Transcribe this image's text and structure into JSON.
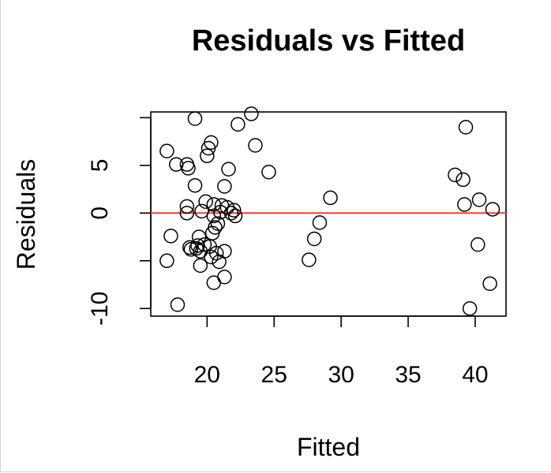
{
  "chart_data": {
    "type": "scatter",
    "title": "Residuals vs Fitted",
    "xlabel": "Fitted",
    "ylabel": "Residuals",
    "xlim": [
      15.8,
      42.3
    ],
    "ylim": [
      -10.8,
      10.6
    ],
    "x_ticks": [
      20,
      25,
      30,
      35,
      40
    ],
    "x_tick_labels": [
      "20",
      "25",
      "30",
      "35",
      "40"
    ],
    "y_ticks": [
      -10,
      -5,
      0,
      5,
      10
    ],
    "y_tick_labels": [
      "-10",
      "",
      "0",
      "5",
      ""
    ],
    "grid": false,
    "reference_line": {
      "y": 0,
      "color": "#ff3b30"
    },
    "point_color": "#000000",
    "points": [
      {
        "x": 17.0,
        "y": 6.5
      },
      {
        "x": 17.0,
        "y": -5.0
      },
      {
        "x": 17.3,
        "y": -2.4
      },
      {
        "x": 17.7,
        "y": 5.1
      },
      {
        "x": 17.8,
        "y": -9.6
      },
      {
        "x": 18.5,
        "y": 5.1
      },
      {
        "x": 18.5,
        "y": 0.7
      },
      {
        "x": 18.5,
        "y": 0.0
      },
      {
        "x": 18.6,
        "y": 4.7
      },
      {
        "x": 18.7,
        "y": -3.6
      },
      {
        "x": 18.8,
        "y": -3.8
      },
      {
        "x": 19.1,
        "y": 9.9
      },
      {
        "x": 19.1,
        "y": 2.9
      },
      {
        "x": 19.2,
        "y": -3.7
      },
      {
        "x": 19.3,
        "y": -3.4
      },
      {
        "x": 19.4,
        "y": -2.5
      },
      {
        "x": 19.5,
        "y": -4.0
      },
      {
        "x": 19.5,
        "y": -5.5
      },
      {
        "x": 19.6,
        "y": 0.2
      },
      {
        "x": 19.8,
        "y": -3.3
      },
      {
        "x": 19.9,
        "y": 1.2
      },
      {
        "x": 20.0,
        "y": 6.0
      },
      {
        "x": 20.1,
        "y": 6.8
      },
      {
        "x": 20.2,
        "y": -3.5
      },
      {
        "x": 20.3,
        "y": 7.4
      },
      {
        "x": 20.3,
        "y": -4.6
      },
      {
        "x": 20.4,
        "y": -2.1
      },
      {
        "x": 20.5,
        "y": -7.3
      },
      {
        "x": 20.5,
        "y": -0.3
      },
      {
        "x": 20.5,
        "y": 0.9
      },
      {
        "x": 20.6,
        "y": -1.5
      },
      {
        "x": 20.7,
        "y": -4.2
      },
      {
        "x": 20.8,
        "y": -1.1
      },
      {
        "x": 20.9,
        "y": -5.1
      },
      {
        "x": 21.0,
        "y": 0.1
      },
      {
        "x": 21.1,
        "y": 0.8
      },
      {
        "x": 21.3,
        "y": 2.8
      },
      {
        "x": 21.3,
        "y": -6.7
      },
      {
        "x": 21.3,
        "y": -4.0
      },
      {
        "x": 21.5,
        "y": 0.6
      },
      {
        "x": 21.6,
        "y": 4.6
      },
      {
        "x": 21.8,
        "y": 0.0
      },
      {
        "x": 22.0,
        "y": 0.3
      },
      {
        "x": 22.1,
        "y": -0.3
      },
      {
        "x": 22.3,
        "y": 9.3
      },
      {
        "x": 23.3,
        "y": 10.4
      },
      {
        "x": 23.6,
        "y": 7.1
      },
      {
        "x": 24.6,
        "y": 4.3
      },
      {
        "x": 27.6,
        "y": -4.9
      },
      {
        "x": 28.0,
        "y": -2.7
      },
      {
        "x": 28.4,
        "y": -1.0
      },
      {
        "x": 29.2,
        "y": 1.6
      },
      {
        "x": 38.5,
        "y": 4.0
      },
      {
        "x": 39.1,
        "y": 3.5
      },
      {
        "x": 39.2,
        "y": 0.9
      },
      {
        "x": 39.3,
        "y": 9.0
      },
      {
        "x": 39.6,
        "y": -10.0
      },
      {
        "x": 40.2,
        "y": -3.3
      },
      {
        "x": 40.3,
        "y": 1.4
      },
      {
        "x": 41.1,
        "y": -7.4
      },
      {
        "x": 41.3,
        "y": 0.4
      }
    ]
  }
}
